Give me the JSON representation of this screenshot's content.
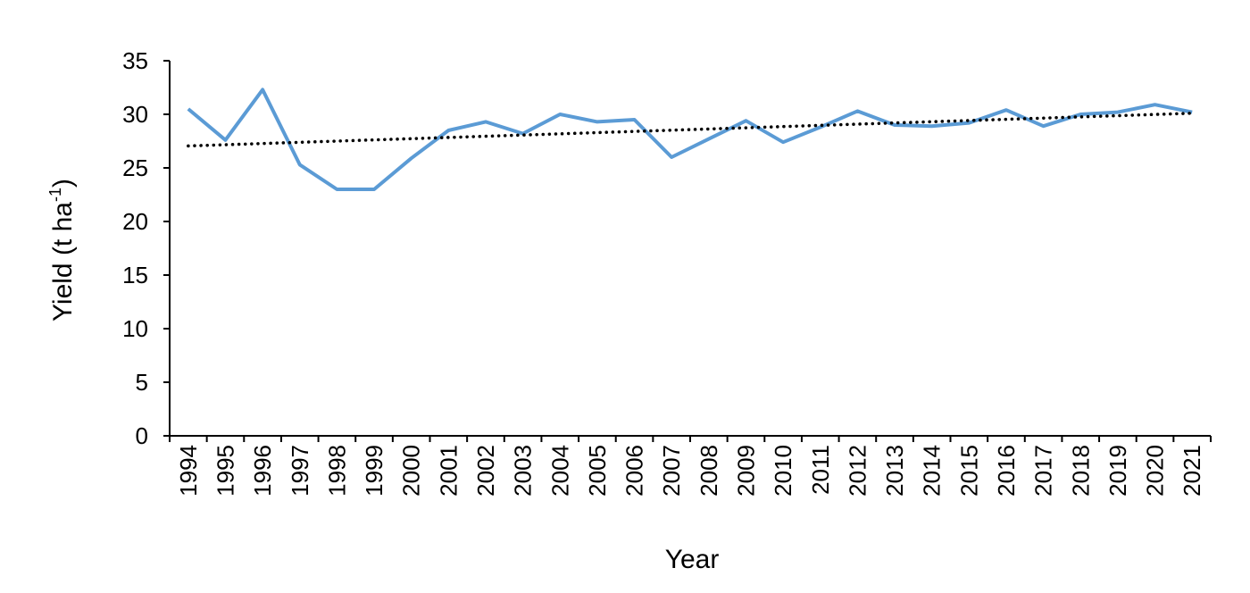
{
  "chart_data": {
    "type": "line",
    "x_label": "Year",
    "y_label": [
      "Yield (t ha",
      "-1",
      ")"
    ],
    "categories": [
      "1994",
      "1995",
      "1996",
      "1997",
      "1998",
      "1999",
      "2000",
      "2001",
      "2002",
      "2003",
      "2004",
      "2005",
      "2006",
      "2007",
      "2008",
      "2009",
      "2010",
      "2011",
      "2012",
      "2013",
      "2014",
      "2015",
      "2016",
      "2017",
      "2018",
      "2019",
      "2020",
      "2021"
    ],
    "values": [
      30.5,
      27.6,
      32.3,
      25.3,
      23.0,
      23.0,
      25.9,
      28.5,
      29.3,
      28.2,
      30.0,
      29.3,
      29.5,
      26.0,
      27.7,
      29.4,
      27.4,
      28.8,
      30.3,
      29.0,
      28.9,
      29.2,
      30.4,
      28.9,
      30.0,
      30.2,
      30.9,
      30.2
    ],
    "color": "#5b9bd5",
    "trendline": {
      "start": 27.05,
      "end": 30.1,
      "color": "#000000",
      "style": "dotted"
    },
    "ylim": [
      0,
      35
    ],
    "yticks": [
      0,
      5,
      10,
      15,
      20,
      25,
      30,
      35
    ],
    "grid": false
  }
}
